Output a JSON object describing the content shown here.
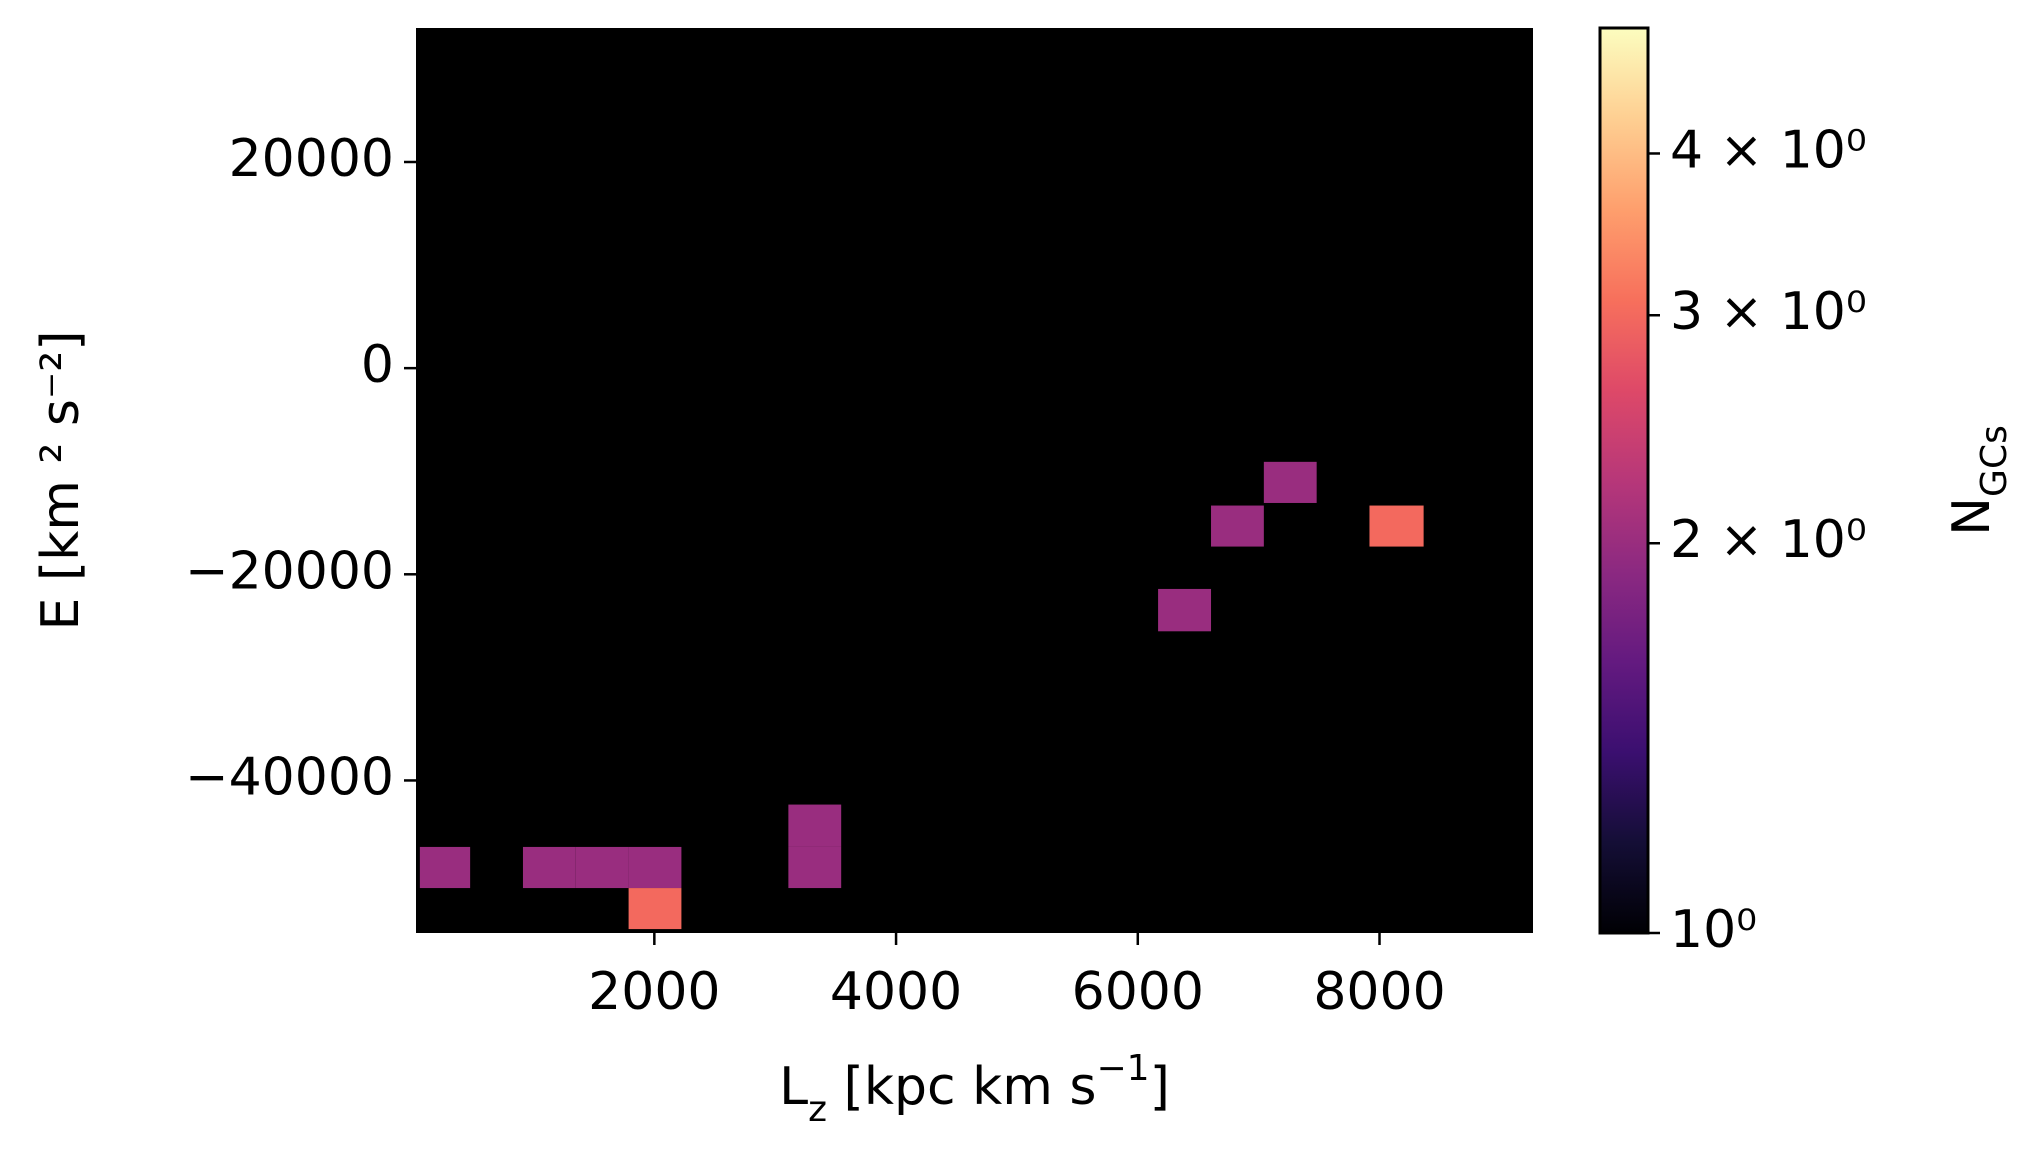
{
  "chart_data": {
    "type": "heatmap",
    "xlabel": [
      {
        "text": "L"
      },
      {
        "text": "z",
        "shift": "sub"
      },
      {
        "text": " [kpc km s"
      },
      {
        "text": "−1",
        "shift": "super"
      },
      {
        "text": "]"
      }
    ],
    "ylabel": "E [km ² s⁻²]",
    "colorbar_label": [
      {
        "text": "N"
      },
      {
        "text": "GCs",
        "shift": "sub"
      }
    ],
    "xlim": [
      28,
      9270
    ],
    "ylim": [
      -54800,
      33000
    ],
    "xticks": [
      2000,
      4000,
      6000,
      8000
    ],
    "yticks": [
      {
        "value": -40000,
        "label": "−40000"
      },
      {
        "value": -20000,
        "label": "−20000"
      },
      0,
      20000
    ],
    "colormap": "magma",
    "color_scale": "log",
    "clim": [
      1,
      5
    ],
    "background": "#000000",
    "cticks": [
      {
        "value": 1,
        "label": "10⁰"
      },
      {
        "value": 2,
        "label": "2 × 10⁰"
      },
      {
        "value": 3,
        "label": "3 × 10⁰"
      },
      {
        "value": 4,
        "label": "4 × 10⁰"
      }
    ],
    "cells": [
      {
        "x": [
          60,
          476
        ],
        "y": [
          -50440,
          -46450
        ],
        "value": 2
      },
      {
        "x": [
          913,
          1350
        ],
        "y": [
          -50440,
          -46450
        ],
        "value": 2
      },
      {
        "x": [
          1350,
          1787
        ],
        "y": [
          -50440,
          -46450
        ],
        "value": 2
      },
      {
        "x": [
          1787,
          2224
        ],
        "y": [
          -50440,
          -46450
        ],
        "value": 2
      },
      {
        "x": [
          1787,
          2224
        ],
        "y": [
          -54420,
          -50440
        ],
        "value": 3
      },
      {
        "x": [
          3109,
          3546
        ],
        "y": [
          -46450,
          -42340
        ],
        "value": 2
      },
      {
        "x": [
          3109,
          3546
        ],
        "y": [
          -50440,
          -46450
        ],
        "value": 2
      },
      {
        "x": [
          6168,
          6606
        ],
        "y": [
          -25530,
          -21420
        ],
        "value": 2
      },
      {
        "x": [
          6606,
          7043
        ],
        "y": [
          -17310,
          -13330
        ],
        "value": 2
      },
      {
        "x": [
          7043,
          7480
        ],
        "y": [
          -13080,
          -9090
        ],
        "value": 2
      },
      {
        "x": [
          7917,
          8365
        ],
        "y": [
          -17310,
          -13330
        ],
        "value": 3
      }
    ]
  }
}
